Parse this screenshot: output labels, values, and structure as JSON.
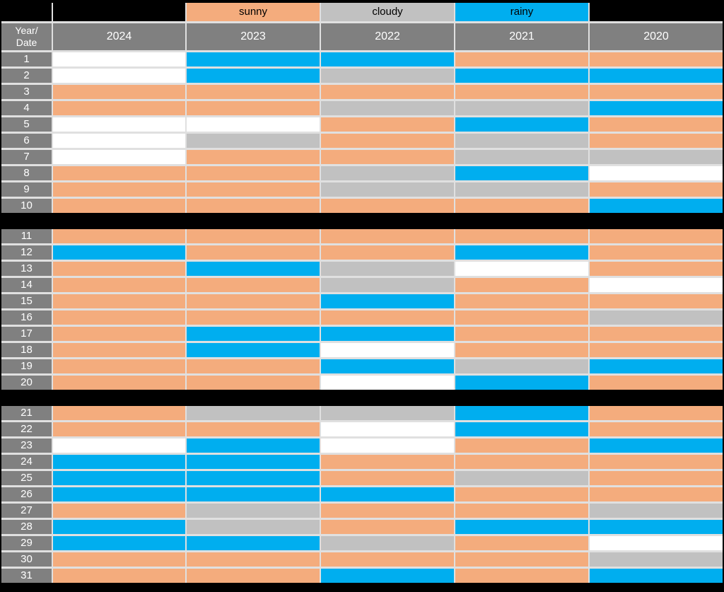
{
  "colors": {
    "sunny": "#F4AC7D",
    "cloudy": "#C1C1C1",
    "rainy": "#00AEEF",
    "empty": "#FFFFFF",
    "header_bg": "#808080",
    "grid_line": "#E0E0E0",
    "background": "#000000",
    "header_text": "#FFFFFF",
    "legend_text": "#000000"
  },
  "legend": {
    "items": [
      {
        "key": "sunny",
        "label": "sunny"
      },
      {
        "key": "cloudy",
        "label": "cloudy"
      },
      {
        "key": "rainy",
        "label": "rainy"
      }
    ]
  },
  "header": {
    "corner_line1": "Year/",
    "corner_line2": "Date",
    "years": [
      "2024",
      "2023",
      "2022",
      "2021",
      "2020"
    ]
  },
  "chart_data": {
    "type": "heatmap",
    "row_header": "Year/Date",
    "columns": [
      "2024",
      "2023",
      "2022",
      "2021",
      "2020"
    ],
    "value_set": [
      "sunny",
      "cloudy",
      "rainy",
      "empty"
    ],
    "legend_entries": [
      "sunny",
      "cloudy",
      "rainy"
    ],
    "blocks": [
      [
        1,
        10
      ],
      [
        11,
        20
      ],
      [
        21,
        31
      ]
    ],
    "rows": [
      {
        "date": 1,
        "cells": [
          "empty",
          "rainy",
          "rainy",
          "sunny",
          "sunny"
        ]
      },
      {
        "date": 2,
        "cells": [
          "empty",
          "rainy",
          "cloudy",
          "rainy",
          "rainy"
        ]
      },
      {
        "date": 3,
        "cells": [
          "sunny",
          "sunny",
          "sunny",
          "sunny",
          "sunny"
        ]
      },
      {
        "date": 4,
        "cells": [
          "sunny",
          "sunny",
          "cloudy",
          "cloudy",
          "rainy"
        ]
      },
      {
        "date": 5,
        "cells": [
          "empty",
          "empty",
          "sunny",
          "rainy",
          "sunny"
        ]
      },
      {
        "date": 6,
        "cells": [
          "empty",
          "cloudy",
          "sunny",
          "cloudy",
          "sunny"
        ]
      },
      {
        "date": 7,
        "cells": [
          "empty",
          "sunny",
          "sunny",
          "cloudy",
          "cloudy"
        ]
      },
      {
        "date": 8,
        "cells": [
          "sunny",
          "sunny",
          "cloudy",
          "rainy",
          "empty"
        ]
      },
      {
        "date": 9,
        "cells": [
          "sunny",
          "sunny",
          "cloudy",
          "cloudy",
          "sunny"
        ]
      },
      {
        "date": 10,
        "cells": [
          "sunny",
          "sunny",
          "sunny",
          "sunny",
          "rainy"
        ]
      },
      {
        "date": 11,
        "cells": [
          "sunny",
          "sunny",
          "sunny",
          "sunny",
          "sunny"
        ]
      },
      {
        "date": 12,
        "cells": [
          "rainy",
          "sunny",
          "sunny",
          "rainy",
          "sunny"
        ]
      },
      {
        "date": 13,
        "cells": [
          "sunny",
          "rainy",
          "cloudy",
          "empty",
          "sunny"
        ]
      },
      {
        "date": 14,
        "cells": [
          "sunny",
          "sunny",
          "cloudy",
          "sunny",
          "empty"
        ]
      },
      {
        "date": 15,
        "cells": [
          "sunny",
          "sunny",
          "rainy",
          "sunny",
          "sunny"
        ]
      },
      {
        "date": 16,
        "cells": [
          "sunny",
          "sunny",
          "sunny",
          "sunny",
          "cloudy"
        ]
      },
      {
        "date": 17,
        "cells": [
          "sunny",
          "rainy",
          "rainy",
          "sunny",
          "sunny"
        ]
      },
      {
        "date": 18,
        "cells": [
          "sunny",
          "rainy",
          "empty",
          "sunny",
          "sunny"
        ]
      },
      {
        "date": 19,
        "cells": [
          "sunny",
          "sunny",
          "rainy",
          "cloudy",
          "rainy"
        ]
      },
      {
        "date": 20,
        "cells": [
          "sunny",
          "sunny",
          "empty",
          "rainy",
          "sunny"
        ]
      },
      {
        "date": 21,
        "cells": [
          "sunny",
          "cloudy",
          "cloudy",
          "rainy",
          "sunny"
        ]
      },
      {
        "date": 22,
        "cells": [
          "sunny",
          "sunny",
          "empty",
          "rainy",
          "sunny"
        ]
      },
      {
        "date": 23,
        "cells": [
          "empty",
          "rainy",
          "empty",
          "sunny",
          "rainy"
        ]
      },
      {
        "date": 24,
        "cells": [
          "rainy",
          "rainy",
          "sunny",
          "sunny",
          "sunny"
        ]
      },
      {
        "date": 25,
        "cells": [
          "rainy",
          "rainy",
          "sunny",
          "cloudy",
          "sunny"
        ]
      },
      {
        "date": 26,
        "cells": [
          "rainy",
          "rainy",
          "rainy",
          "sunny",
          "sunny"
        ]
      },
      {
        "date": 27,
        "cells": [
          "sunny",
          "cloudy",
          "sunny",
          "sunny",
          "cloudy"
        ]
      },
      {
        "date": 28,
        "cells": [
          "rainy",
          "cloudy",
          "sunny",
          "rainy",
          "rainy"
        ]
      },
      {
        "date": 29,
        "cells": [
          "rainy",
          "rainy",
          "cloudy",
          "sunny",
          "empty"
        ]
      },
      {
        "date": 30,
        "cells": [
          "sunny",
          "sunny",
          "sunny",
          "sunny",
          "cloudy"
        ]
      },
      {
        "date": 31,
        "cells": [
          "sunny",
          "sunny",
          "rainy",
          "sunny",
          "rainy"
        ]
      }
    ]
  }
}
